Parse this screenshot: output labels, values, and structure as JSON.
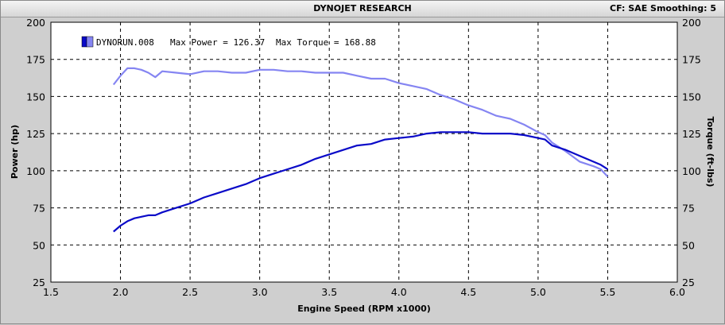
{
  "window": {
    "title": "DYNOJET RESEARCH",
    "settings": "CF: SAE  Smoothing: 5"
  },
  "colors": {
    "power": "#0a0ac8",
    "torque": "#8585f2",
    "plot_bg": "#ffffff",
    "grid": "#000000"
  },
  "chart_data": {
    "type": "line",
    "title": "DYNOJET RESEARCH",
    "xlabel": "Engine Speed (RPM x1000)",
    "ylabel": "Power (hp)",
    "ylabel_right": "Torque (ft-lbs)",
    "xlim": [
      1.5,
      6.0
    ],
    "ylim": [
      25,
      200
    ],
    "ylim_right": [
      25,
      200
    ],
    "x_ticks": [
      "1.5",
      "2.0",
      "2.5",
      "3.0",
      "3.5",
      "4.0",
      "4.5",
      "5.0",
      "5.5",
      "6.0"
    ],
    "y_ticks": [
      "25",
      "50",
      "75",
      "100",
      "125",
      "150",
      "175",
      "200"
    ],
    "y_ticks_right": [
      "25",
      "50",
      "75",
      "100",
      "125",
      "150",
      "175",
      "200"
    ],
    "grid": true,
    "legend": {
      "position": "top-left",
      "entries": [
        "DYNORUN.008",
        "Max Power = 126.37",
        "Max Torque = 168.88"
      ]
    },
    "series": [
      {
        "name": "Power",
        "axis": "left",
        "x": [
          1.95,
          2.0,
          2.05,
          2.1,
          2.15,
          2.2,
          2.25,
          2.3,
          2.4,
          2.5,
          2.6,
          2.7,
          2.8,
          2.9,
          3.0,
          3.1,
          3.2,
          3.3,
          3.4,
          3.5,
          3.6,
          3.7,
          3.8,
          3.9,
          4.0,
          4.1,
          4.2,
          4.3,
          4.4,
          4.5,
          4.6,
          4.7,
          4.8,
          4.9,
          5.0,
          5.05,
          5.1,
          5.2,
          5.3,
          5.4,
          5.45,
          5.5
        ],
        "values": [
          59,
          63,
          66,
          68,
          69,
          70,
          70,
          72,
          75,
          78,
          82,
          85,
          88,
          91,
          95,
          98,
          101,
          104,
          108,
          111,
          114,
          117,
          118,
          121,
          122,
          123,
          125,
          126,
          126,
          126,
          125,
          125,
          125,
          124,
          122,
          121,
          117,
          114,
          110,
          106,
          104,
          101
        ]
      },
      {
        "name": "Torque",
        "axis": "right",
        "x": [
          1.95,
          2.0,
          2.05,
          2.1,
          2.15,
          2.2,
          2.25,
          2.3,
          2.4,
          2.5,
          2.6,
          2.7,
          2.8,
          2.9,
          3.0,
          3.1,
          3.2,
          3.3,
          3.4,
          3.5,
          3.6,
          3.7,
          3.8,
          3.9,
          4.0,
          4.1,
          4.2,
          4.3,
          4.4,
          4.5,
          4.6,
          4.7,
          4.8,
          4.9,
          5.0,
          5.05,
          5.1,
          5.2,
          5.3,
          5.4,
          5.45,
          5.5
        ],
        "values": [
          158,
          164,
          169,
          169,
          168,
          166,
          163,
          167,
          166,
          165,
          167,
          167,
          166,
          166,
          168,
          168,
          167,
          167,
          166,
          166,
          166,
          164,
          162,
          162,
          159,
          157,
          155,
          151,
          148,
          144,
          141,
          137,
          135,
          131,
          126,
          124,
          119,
          113,
          106,
          103,
          101,
          96
        ]
      }
    ]
  }
}
